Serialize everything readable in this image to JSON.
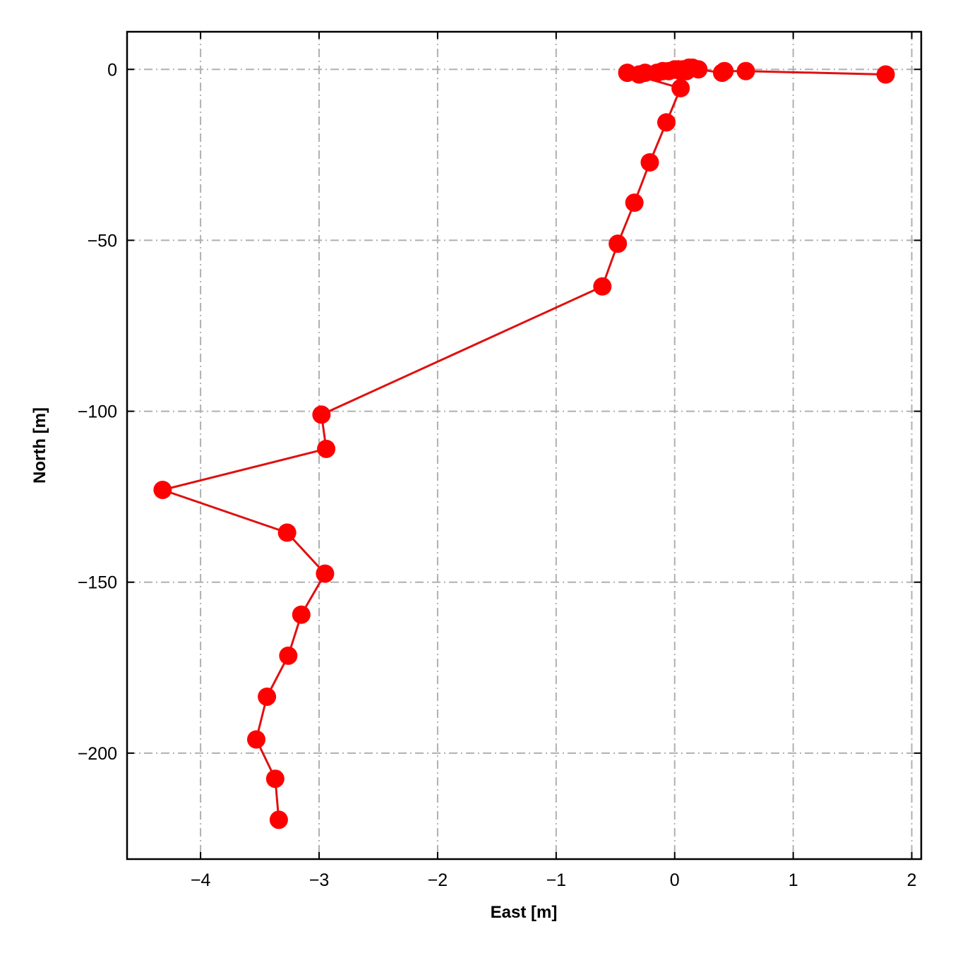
{
  "chart_data": {
    "type": "line",
    "title": "",
    "xlabel": "East [m]",
    "ylabel": "North [m]",
    "xlim": [
      -4.62,
      2.08
    ],
    "ylim": [
      -231,
      11
    ],
    "xticks": [
      -4,
      -3,
      -2,
      -1,
      0,
      1,
      2
    ],
    "xtick_labels": [
      "−4",
      "−3",
      "−2",
      "−1",
      "0",
      "1",
      "2"
    ],
    "yticks": [
      0,
      -50,
      -100,
      -150,
      -200
    ],
    "ytick_labels": [
      "0",
      "−50",
      "−100",
      "−150",
      "−200"
    ],
    "grid": true,
    "grid_style": "dashdot",
    "marker": "circle",
    "colors": {
      "series": "#ff0000",
      "line": "#e01010",
      "grid": "#b0b0b0",
      "axes": "#000000"
    },
    "series": [
      {
        "x": [
          1.78,
          0.6,
          0.42,
          0.4,
          0.2,
          0.15,
          0.12,
          0.1,
          0.07,
          0.05,
          0.03,
          0.0,
          -0.05,
          -0.1,
          -0.15,
          -0.25,
          -0.3,
          -0.4,
          0.05,
          -0.07,
          -0.21,
          -0.34,
          -0.48,
          -0.61,
          -2.98,
          -2.94,
          -4.32,
          -3.27,
          -2.95,
          -3.15,
          -3.26,
          -3.44,
          -3.53,
          -3.37,
          -3.34
        ],
        "y": [
          -1.5,
          -0.5,
          -0.5,
          -1.0,
          0.0,
          0.5,
          0.5,
          -0.5,
          0.0,
          -0.5,
          0.0,
          0.0,
          -0.5,
          -0.5,
          -1.0,
          -1.0,
          -1.5,
          -1.0,
          -5.5,
          -15.5,
          -27.2,
          -39.0,
          -51.0,
          -63.5,
          -101.0,
          -111.0,
          -123.0,
          -135.5,
          -147.5,
          -159.5,
          -171.5,
          -183.5,
          -196.0,
          -207.5,
          -219.5
        ]
      }
    ]
  }
}
